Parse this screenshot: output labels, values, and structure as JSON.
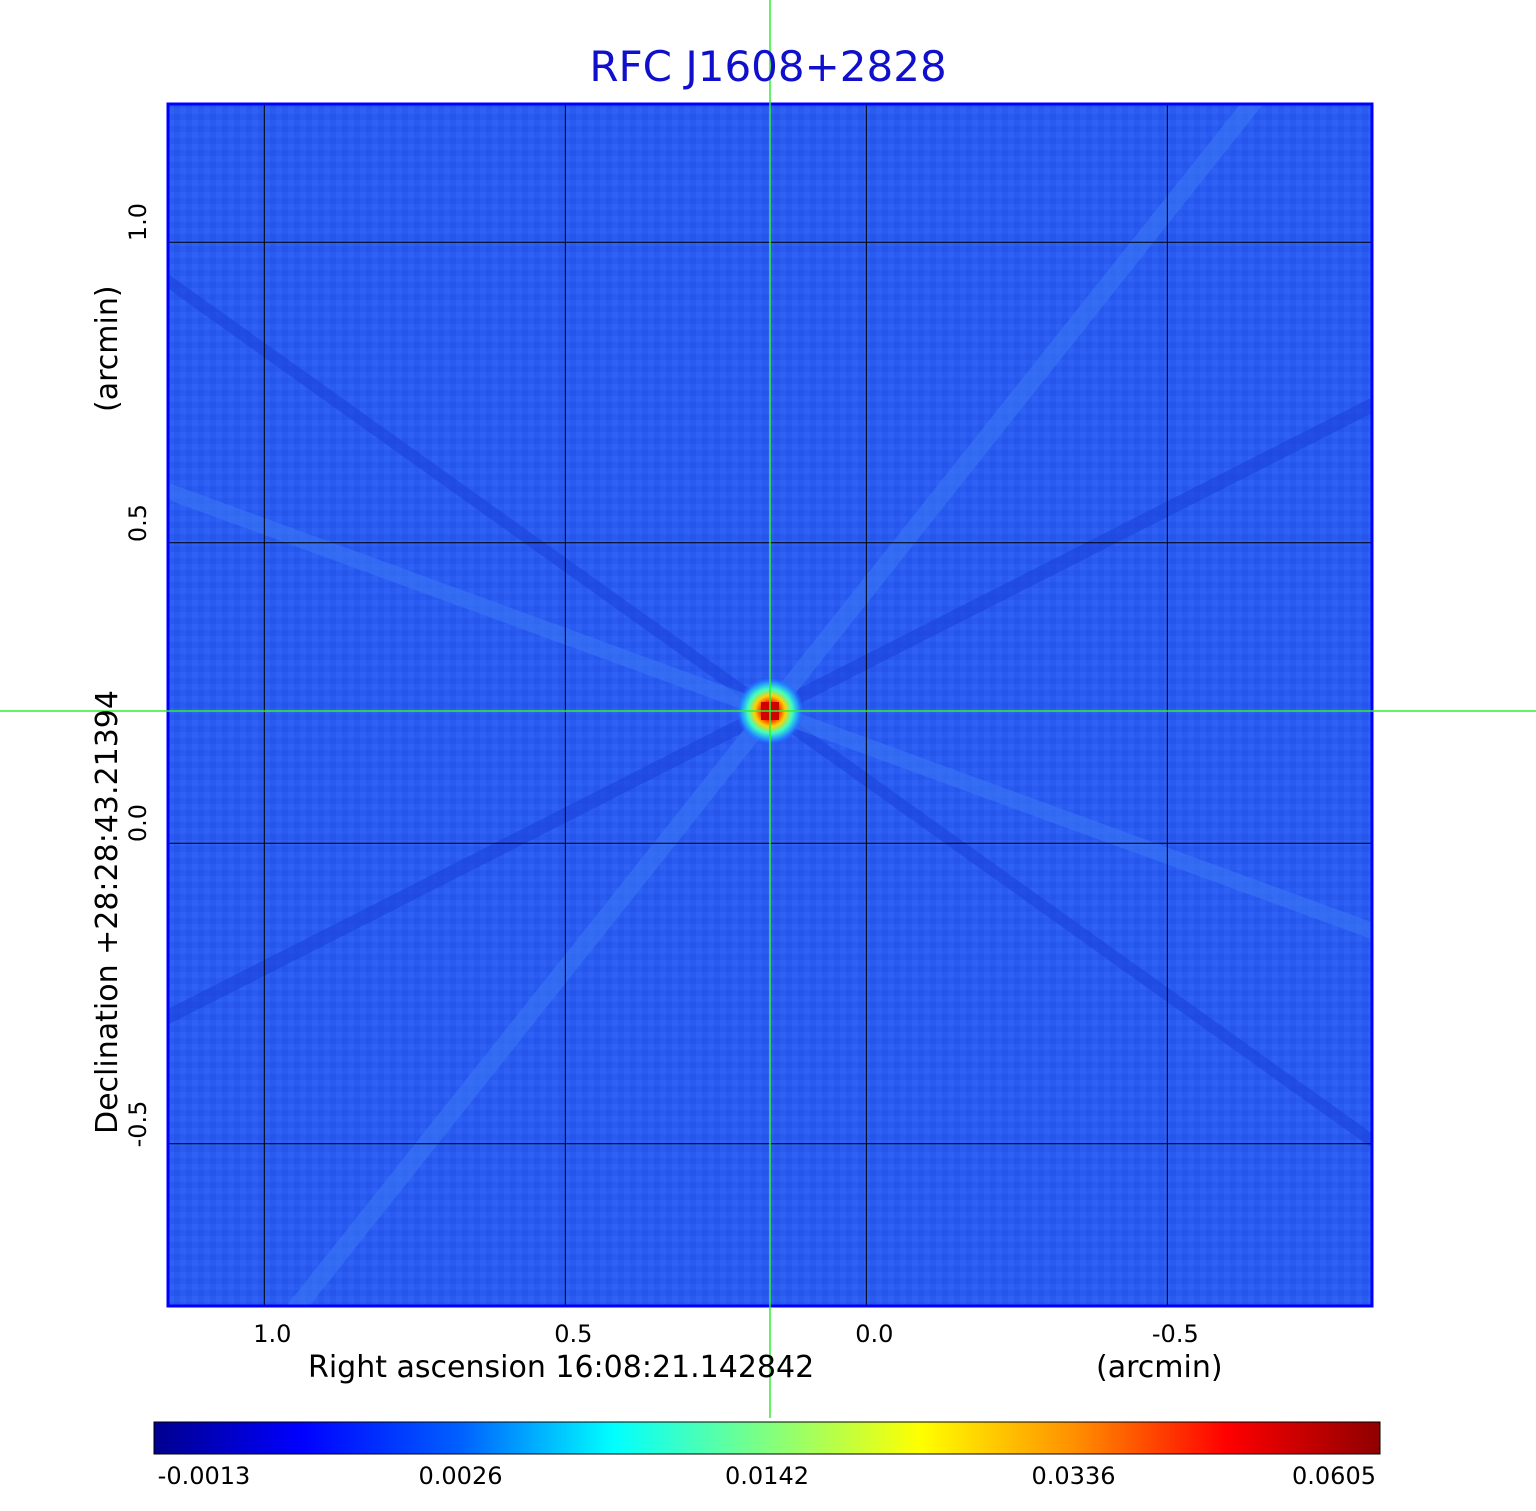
{
  "chart_data": {
    "type": "heatmap",
    "title": "RFC J1608+2828",
    "xlabel": "Right ascension  16:08:21.142842",
    "xunit": "(arcmin)",
    "ylabel": "Declination  +28:28:43.21394",
    "yunit": "(arcmin)",
    "x_ticks": [
      "1.0",
      "0.5",
      "0.0",
      "-0.5"
    ],
    "y_ticks": [
      "1.0",
      "0.5",
      "0.0",
      "-0.5"
    ],
    "x_tick_values": [
      1.0,
      0.5,
      0.0,
      -0.5
    ],
    "y_tick_values": [
      1.0,
      0.5,
      0.0,
      -0.5
    ],
    "xlim": [
      1.16,
      -0.84
    ],
    "ylim": [
      -0.77,
      1.23
    ],
    "grid": true,
    "crosshair": {
      "x": 0.16,
      "y": 0.22
    },
    "peak": {
      "x": 0.16,
      "y": 0.22,
      "value": 0.0605
    },
    "colorbar": {
      "ticks": [
        "-0.0013",
        "0.0026",
        "0.0142",
        "0.0336",
        "0.0605"
      ],
      "colormap": "jet"
    }
  },
  "colors": {
    "title": "#1010cc",
    "frame": "#0000ff",
    "crosshair": "#33ee33",
    "grid": "#000000"
  }
}
